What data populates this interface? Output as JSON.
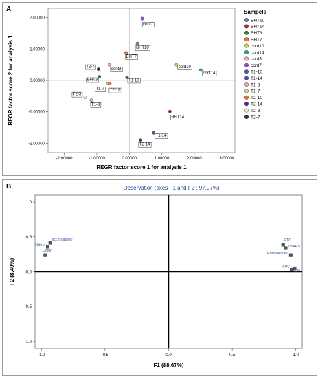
{
  "panel_a": {
    "letter": "A",
    "chart_data": {
      "type": "scatter",
      "xlabel": "REGR factor score   1 for analysis 1",
      "ylabel": "REGR factor score   2 for analysis 1",
      "xlim": [
        -2.5,
        3.25
      ],
      "ylim": [
        -2.3,
        2.3
      ],
      "xticks": [
        -2.0,
        -1.0,
        0.0,
        1.0,
        2.0,
        3.0
      ],
      "xtick_labels": [
        "-2.00000",
        "-1.00000",
        "0.00000",
        "1.00000",
        "2.00000",
        "3.00000"
      ],
      "yticks": [
        -2.0,
        -1.0,
        0.0,
        1.0,
        2.0
      ],
      "ytick_labels": [
        "-2.00000",
        "-1.00000",
        "0.00000",
        "1.00000",
        "2.00000"
      ],
      "legend_title": "Sampels",
      "legend_position": "right",
      "points": [
        {
          "name": "BHT10",
          "x": 0.25,
          "y": 1.18,
          "color": "#4f87c9",
          "label": "BHT10"
        },
        {
          "name": "BHT14",
          "x": 1.25,
          "y": -0.99,
          "color": "#c4222a",
          "label": "BHT14"
        },
        {
          "name": "BHT3",
          "x": -0.92,
          "y": 0.12,
          "color": "#2f8a3a",
          "label": "BHT3"
        },
        {
          "name": "BHT7",
          "x": -0.1,
          "y": 0.88,
          "color": "#e8742b",
          "label": "BHT7"
        },
        {
          "name": "cont10",
          "x": 1.45,
          "y": 0.5,
          "color": "#e3d323",
          "label": "cont10"
        },
        {
          "name": "cont14",
          "x": 2.2,
          "y": 0.33,
          "color": "#1fa699",
          "label": "cont14"
        },
        {
          "name": "cont3",
          "x": -0.6,
          "y": 0.5,
          "color": "#f4a3c1",
          "label": "cont3"
        },
        {
          "name": "cont7",
          "x": 0.4,
          "y": 1.97,
          "color": "#9b48d8",
          "label": "cont7"
        },
        {
          "name": "T1-10",
          "x": -0.07,
          "y": 0.1,
          "color": "#3b5ea8",
          "label": "T1-10"
        },
        {
          "name": "T1-14",
          "x": 0.75,
          "y": -1.67,
          "color": "#3b5ea8",
          "label": "T1-14"
        },
        {
          "name": "T1-3",
          "x": -1.17,
          "y": -0.63,
          "color": "#f4a3c1",
          "label": "T1-3"
        },
        {
          "name": "T1-7",
          "x": -0.65,
          "y": -0.09,
          "color": "#d6cf8a",
          "label": "T1-7"
        },
        {
          "name": "T2-10",
          "x": -0.6,
          "y": -0.1,
          "color": "#e8742b",
          "label": "T2-10"
        },
        {
          "name": "T2-14",
          "x": 0.35,
          "y": -1.9,
          "color": "#5a2482",
          "label": "T2-14"
        },
        {
          "name": "T2-3",
          "x": -1.36,
          "y": -0.54,
          "color": "#efeed5",
          "label": "T2-3"
        },
        {
          "name": "T2-7",
          "x": -0.95,
          "y": 0.36,
          "color": "#333333",
          "label": "T2-7"
        }
      ],
      "legend": [
        "BHT10",
        "BHT14",
        "BHT3",
        "BHT7",
        "cont10",
        "cont14",
        "cont3",
        "cont7",
        "T1-10",
        "T1-14",
        "T1-3",
        "T1-7",
        "T2-10",
        "T2-14",
        "T2-3",
        "T2-7"
      ]
    }
  },
  "panel_b": {
    "letter": "B",
    "chart_data": {
      "type": "scatter",
      "title": "Observation (axes F1 and F2 : 97.07%)",
      "xlabel": "F1 (88.67%)",
      "ylabel": "F2 (8.40%)",
      "xlim": [
        -1.05,
        1.05
      ],
      "ylim": [
        -1.1,
        1.1
      ],
      "xticks": [
        -1.0,
        -0.5,
        0.0,
        0.5,
        1.0
      ],
      "xtick_labels": [
        "-1.0",
        "-0.5",
        "0.0",
        "0.5",
        "1.0"
      ],
      "yticks": [
        -1.0,
        -0.5,
        0.0,
        0.5,
        1.0
      ],
      "ytick_labels": [
        "-1.0",
        "-0.5",
        "0.0",
        "0.5",
        "1.0"
      ],
      "points": [
        {
          "name": "acceptability",
          "x": -0.93,
          "y": 0.42,
          "label": "acceptability"
        },
        {
          "name": "Odour",
          "x": -0.95,
          "y": 0.36,
          "label": "Odour"
        },
        {
          "name": "Color",
          "x": -0.97,
          "y": 0.24,
          "label": "Color"
        },
        {
          "name": "PTC",
          "x": 0.9,
          "y": 0.39,
          "label": "PTC"
        },
        {
          "name": "TBARS",
          "x": 0.92,
          "y": 0.34,
          "label": "TBARS"
        },
        {
          "name": "Enterobacter",
          "x": 0.96,
          "y": 0.24,
          "label": "Enterobacter"
        },
        {
          "name": "APC",
          "x": 0.97,
          "y": 0.03,
          "label": "APC"
        },
        {
          "name": "pH",
          "x": 0.99,
          "y": 0.05,
          "label": "pH"
        }
      ]
    }
  }
}
